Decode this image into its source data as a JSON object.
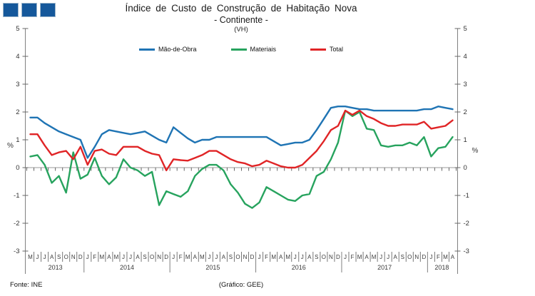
{
  "header": {
    "title_line1": "Índice de Custo de Construção de Habitação Nova",
    "title_line2": "- Continente -",
    "title_line3": "(VH)"
  },
  "footer": {
    "source": "Fonte: INE",
    "credit": "(Gráfico: GEE)"
  },
  "logo": {
    "color": "#15589B",
    "square_count": 3
  },
  "axis_colors": {
    "axis_line": "#808080",
    "zero_line": "#999999",
    "tick": "#666666",
    "tick_label": "#333333",
    "month_label": "#3a3a3a",
    "year_label": "#3a3a3a",
    "separator": "#777777"
  },
  "chart_data": {
    "type": "line",
    "title": "Índice de Custo de Construção de Habitação Nova",
    "subtitle": "- Continente -",
    "unit": "(VH)",
    "ylabel": "%",
    "ylim": [
      -3,
      5
    ],
    "y_tick_step": 1,
    "grid": false,
    "legend_position": "top-center",
    "categories_months": [
      "M",
      "J",
      "J",
      "A",
      "S",
      "O",
      "N",
      "D",
      "J",
      "F",
      "M",
      "A",
      "M",
      "J",
      "J",
      "A",
      "S",
      "O",
      "N",
      "D",
      "J",
      "F",
      "M",
      "A",
      "M",
      "J",
      "J",
      "A",
      "S",
      "O",
      "N",
      "D",
      "J",
      "F",
      "M",
      "A",
      "M",
      "J",
      "J",
      "A",
      "S",
      "O",
      "N",
      "D",
      "J",
      "F",
      "M",
      "A",
      "M",
      "J",
      "J",
      "A",
      "S",
      "O",
      "N",
      "D",
      "J",
      "F",
      "M",
      "A"
    ],
    "year_groups": [
      {
        "label": "2013",
        "count": 8
      },
      {
        "label": "2014",
        "count": 12
      },
      {
        "label": "2015",
        "count": 12
      },
      {
        "label": "2016",
        "count": 12
      },
      {
        "label": "2017",
        "count": 12
      },
      {
        "label": "2018",
        "count": 4
      }
    ],
    "series": [
      {
        "name": "Mão-de-Obra",
        "color": "#1F74B4",
        "values": [
          1.8,
          1.8,
          1.6,
          1.45,
          1.3,
          1.2,
          1.1,
          1.0,
          0.35,
          0.75,
          1.2,
          1.35,
          1.3,
          1.25,
          1.2,
          1.25,
          1.3,
          1.15,
          1.0,
          0.9,
          1.45,
          1.25,
          1.05,
          0.9,
          1.0,
          1.0,
          1.1,
          1.1,
          1.1,
          1.1,
          1.1,
          1.1,
          1.1,
          1.1,
          0.95,
          0.8,
          0.85,
          0.9,
          0.9,
          1.0,
          1.35,
          1.75,
          2.15,
          2.2,
          2.2,
          2.15,
          2.1,
          2.1,
          2.05,
          2.05,
          2.05,
          2.05,
          2.05,
          2.05,
          2.05,
          2.1,
          2.1,
          2.2,
          2.15,
          2.1
        ]
      },
      {
        "name": "Materiais",
        "color": "#27A35E",
        "values": [
          0.4,
          0.45,
          0.1,
          -0.55,
          -0.3,
          -0.9,
          0.55,
          -0.4,
          -0.25,
          0.35,
          -0.3,
          -0.6,
          -0.35,
          0.3,
          0.0,
          -0.1,
          -0.3,
          -0.15,
          -1.35,
          -0.85,
          -0.95,
          -1.05,
          -0.85,
          -0.3,
          -0.05,
          0.1,
          0.1,
          -0.1,
          -0.6,
          -0.9,
          -1.3,
          -1.45,
          -1.25,
          -0.7,
          -0.85,
          -1.0,
          -1.15,
          -1.2,
          -1.0,
          -0.95,
          -0.3,
          -0.15,
          0.3,
          0.9,
          2.05,
          1.85,
          2.0,
          1.4,
          1.35,
          0.8,
          0.75,
          0.8,
          0.8,
          0.9,
          0.8,
          1.1,
          0.4,
          0.7,
          0.75,
          1.1
        ]
      },
      {
        "name": "Total",
        "color": "#E02426",
        "values": [
          1.2,
          1.2,
          0.8,
          0.45,
          0.55,
          0.6,
          0.3,
          0.75,
          0.1,
          0.6,
          0.65,
          0.5,
          0.45,
          0.75,
          0.75,
          0.75,
          0.6,
          0.5,
          0.45,
          -0.1,
          0.3,
          0.27,
          0.25,
          0.35,
          0.45,
          0.6,
          0.6,
          0.45,
          0.3,
          0.2,
          0.15,
          0.05,
          0.1,
          0.25,
          0.15,
          0.05,
          0.0,
          0.0,
          0.1,
          0.35,
          0.6,
          0.95,
          1.35,
          1.5,
          2.05,
          1.9,
          2.05,
          1.85,
          1.75,
          1.6,
          1.5,
          1.5,
          1.55,
          1.55,
          1.55,
          1.65,
          1.4,
          1.45,
          1.5,
          1.7
        ]
      }
    ]
  }
}
